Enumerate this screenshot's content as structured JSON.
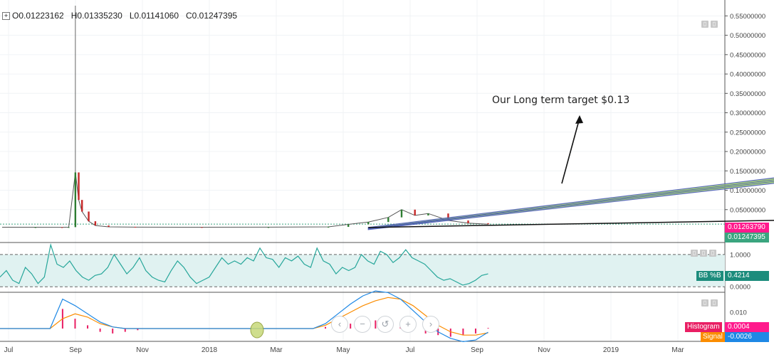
{
  "ohlc": {
    "open": "O0.01223162",
    "high": "H0.01335230",
    "low": "L0.01141060",
    "close": "C0.01247395",
    "expand_icon": "plus-square-icon"
  },
  "annotation": "Our Long term target $0.13",
  "price_tags": {
    "last_upper": "0.01263790",
    "last_lower": "0.01247395"
  },
  "indicator_labels": {
    "bbpb_name": "BB %B",
    "bbpb_value": "0.4214",
    "hist_name": "Histogram",
    "hist_value": "0.0004",
    "signal_name": "Signal",
    "signal_value": "-0.0026"
  },
  "zoom_controls": [
    "‹",
    "−",
    "↺",
    "+",
    "›"
  ],
  "colors": {
    "candle_up": "#2e7d32",
    "candle_down": "#c62828",
    "bb_line": "#26a69a",
    "bb_band": "#e0f2f1",
    "macd": "#1e88e5",
    "signal": "#fb8c00",
    "histogram": "#e91e63",
    "channel_outer": "#3f51b5",
    "channel_inner": "#9ccc65"
  },
  "chart_data": [
    {
      "type": "line",
      "pane": "price",
      "x_ticks": [
        "Jul",
        "Sep",
        "Nov",
        "2018",
        "Mar",
        "May",
        "Jul",
        "Sep",
        "Nov",
        "2019",
        "Mar"
      ],
      "y_ticks": [
        "0.55000000",
        "0.50000000",
        "0.45000000",
        "0.40000000",
        "0.35000000",
        "0.30000000",
        "0.25000000",
        "0.20000000",
        "0.15000000",
        "0.10000000",
        "0.05000000"
      ],
      "ylim": [
        0,
        0.58
      ],
      "series": [
        {
          "values": [
            {
              "x": 0,
              "y": 0.0045
            },
            {
              "x": 0.5,
              "y": 0.0046
            },
            {
              "x": 0.9,
              "y": 0.0044
            },
            {
              "x": 1.0,
              "y": 0.0048
            },
            {
              "x": 1.1,
              "y": 0.146
            },
            {
              "x": 1.15,
              "y": 0.075
            },
            {
              "x": 1.2,
              "y": 0.045
            },
            {
              "x": 1.3,
              "y": 0.02
            },
            {
              "x": 1.4,
              "y": 0.009
            },
            {
              "x": 1.6,
              "y": 0.0055
            },
            {
              "x": 2.0,
              "y": 0.0048
            },
            {
              "x": 3.0,
              "y": 0.0046
            },
            {
              "x": 4.0,
              "y": 0.0047
            },
            {
              "x": 4.9,
              "y": 0.0055
            },
            {
              "x": 5.2,
              "y": 0.012
            },
            {
              "x": 5.5,
              "y": 0.018
            },
            {
              "x": 5.8,
              "y": 0.03
            },
            {
              "x": 6.0,
              "y": 0.05
            },
            {
              "x": 6.2,
              "y": 0.035
            },
            {
              "x": 6.4,
              "y": 0.04
            },
            {
              "x": 6.7,
              "y": 0.022
            },
            {
              "x": 7.0,
              "y": 0.015
            },
            {
              "x": 7.3,
              "y": 0.0125
            }
          ]
        }
      ],
      "trend_channel": {
        "x_start": 5.5,
        "y_start": 0.004,
        "x_end": 14.8,
        "y_end": 0.19
      },
      "support_line": {
        "x_start": 5.5,
        "y_start": 0.004,
        "x_end": 14.2,
        "y_end": 0.03
      }
    },
    {
      "type": "line",
      "pane": "bb_percent_b",
      "y_ticks": [
        "1.0000",
        "0.0000"
      ],
      "ylim": [
        -0.15,
        1.35
      ],
      "series": [
        {
          "values": [
            0.3,
            0.5,
            0.2,
            0.1,
            0.6,
            0.4,
            0.1,
            0.3,
            1.3,
            0.7,
            0.6,
            0.8,
            0.5,
            0.3,
            0.2,
            0.35,
            0.4,
            0.6,
            1.0,
            0.7,
            0.4,
            0.6,
            0.9,
            0.5,
            0.3,
            0.2,
            0.15,
            0.5,
            0.8,
            0.6,
            0.3,
            0.1,
            0.2,
            0.3,
            0.6,
            0.9,
            0.7,
            0.8,
            0.7,
            0.9,
            0.8,
            1.2,
            0.9,
            0.85,
            0.6,
            0.9,
            0.8,
            0.95,
            0.7,
            0.6,
            1.2,
            0.8,
            0.7,
            0.4,
            0.6,
            0.5,
            0.6,
            1.0,
            0.8,
            0.7,
            1.1,
            1.0,
            0.75,
            0.9,
            1.15,
            0.9,
            0.8,
            0.7,
            0.5,
            0.3,
            0.2,
            0.25,
            0.15,
            0.05,
            0.1,
            0.2,
            0.35,
            0.4
          ]
        }
      ]
    },
    {
      "type": "line",
      "pane": "macd",
      "y_ticks": [
        "0.010"
      ],
      "series": [
        {
          "name": "Histogram",
          "values": [
            0,
            0,
            0,
            0,
            0,
            0.012,
            0.006,
            0.002,
            -0.002,
            -0.003,
            -0.002,
            -0.001,
            0,
            0,
            0,
            0,
            0,
            0,
            0,
            0,
            0,
            0,
            0,
            0,
            0,
            0,
            0.001,
            0.002,
            0.003,
            0.004,
            0.005,
            0.004,
            0.002,
            -0.001,
            -0.003,
            -0.004,
            -0.005,
            -0.004,
            -0.003,
            0.0004
          ]
        },
        {
          "name": "Signal",
          "values": [
            0,
            0,
            0,
            0,
            0,
            0.006,
            0.009,
            0.007,
            0.003,
            0.001,
            0,
            0,
            0,
            0,
            0,
            0,
            0,
            0,
            0,
            0,
            0,
            0,
            0,
            0,
            0,
            0,
            0.002,
            0.006,
            0.01,
            0.014,
            0.017,
            0.019,
            0.018,
            0.014,
            0.008,
            0.002,
            -0.002,
            -0.004,
            -0.004,
            -0.0026
          ]
        },
        {
          "values": [
            0,
            0,
            0,
            0,
            0,
            0.018,
            0.014,
            0.009,
            0.004,
            0.001,
            0,
            0,
            0,
            0,
            0,
            0,
            0,
            0,
            0,
            0,
            0,
            0,
            0,
            0,
            0,
            0,
            0.003,
            0.009,
            0.015,
            0.02,
            0.023,
            0.022,
            0.018,
            0.011,
            0.004,
            -0.002,
            -0.006,
            -0.008,
            -0.007,
            -0.0022
          ]
        }
      ]
    }
  ]
}
